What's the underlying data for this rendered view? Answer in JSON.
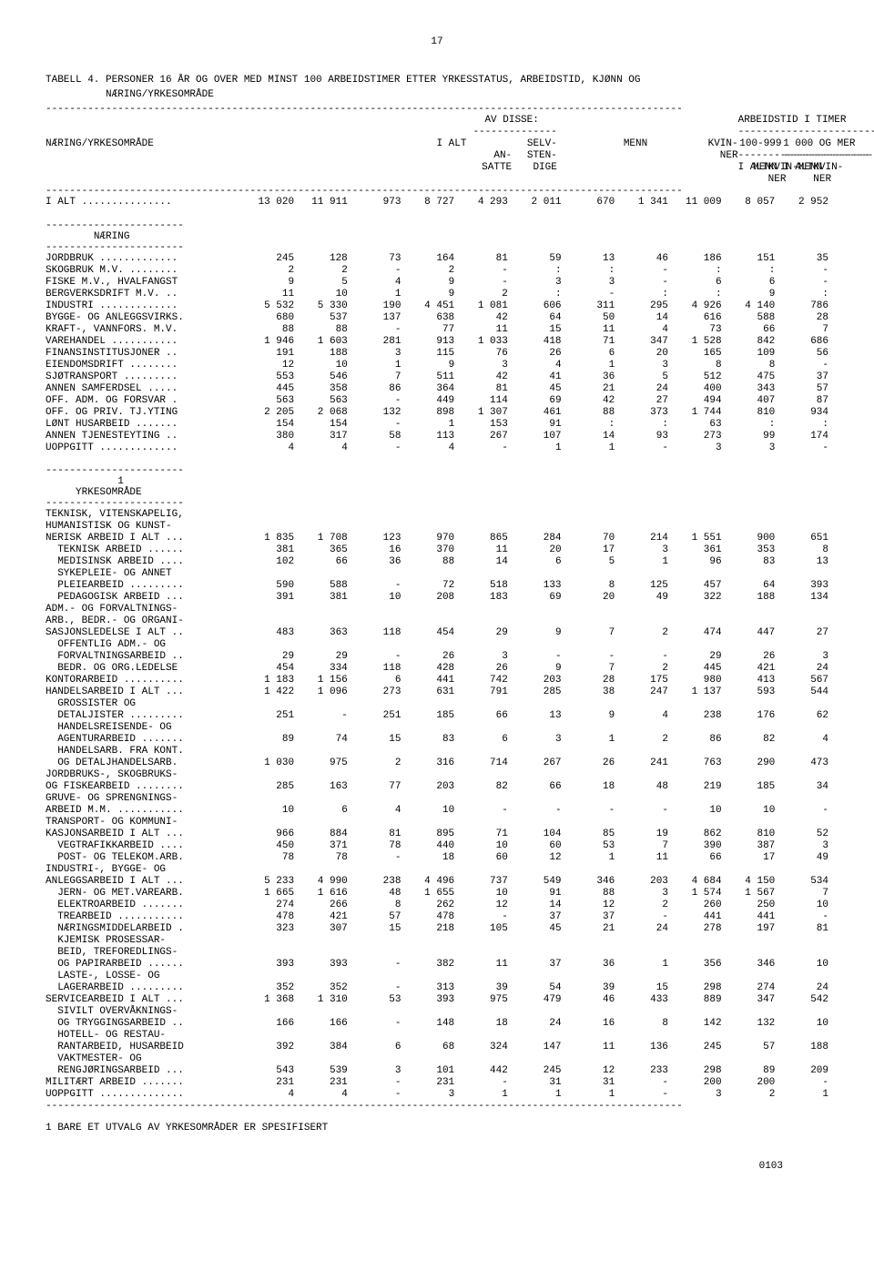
{
  "page_number": "17",
  "title_line1": "TABELL 4. PERSONER 16 ÅR OG OVER MED MINST 100 ARBEIDSTIMER ETTER YRKESSTATUS, ARBEIDSTID, KJØNN OG",
  "title_line2": "          NÆRING/YRKESOMRÅDE",
  "h": {
    "av_disse": "AV DISSE:",
    "arbeidstid": "ARBEIDSTID I TIMER",
    "col_group": "NÆRING/YRKESOMRÅDE",
    "ialt": "I ALT",
    "ansatte": "AN-\nSATTE",
    "selv": "SELV-\nSTEN-\nDIGE",
    "menn": "MENN",
    "kvinner": "KVIN-\nNER",
    "r100_999": "100-999",
    "r1000mer": "1 000 OG MER"
  },
  "section_naering": "NÆRING",
  "section_yrke_no": "1",
  "section_yrke": "YRKESOMRÅDE",
  "rows_naering": [
    [
      "I ALT ...............",
      "13 020",
      "11 911",
      "973",
      "8 727",
      "4 293",
      "2 011",
      "670",
      "1 341",
      "11 009",
      "8 057",
      "2 952"
    ],
    [
      "JORDBRUK .............",
      "245",
      "128",
      "73",
      "164",
      "81",
      "59",
      "13",
      "46",
      "186",
      "151",
      "35"
    ],
    [
      "SKOGBRUK M.V. ........",
      "2",
      "2",
      "-",
      "2",
      "-",
      ":",
      ":",
      "-",
      ":",
      ":",
      "-"
    ],
    [
      "FISKE M.V., HVALFANGST",
      "9",
      "5",
      "4",
      "9",
      "-",
      "3",
      "3",
      "-",
      "6",
      "6",
      "-"
    ],
    [
      "BERGVERKSDRIFT M.V. ..",
      "11",
      "10",
      "1",
      "9",
      "2",
      ":",
      "-",
      ":",
      ":",
      "9",
      ":"
    ],
    [
      "INDUSTRI .............",
      "5 532",
      "5 330",
      "190",
      "4 451",
      "1 081",
      "606",
      "311",
      "295",
      "4 926",
      "4 140",
      "786"
    ],
    [
      "BYGGE- OG ANLEGGSVIRKS.",
      "680",
      "537",
      "137",
      "638",
      "42",
      "64",
      "50",
      "14",
      "616",
      "588",
      "28"
    ],
    [
      "KRAFT-, VANNFORS. M.V.",
      "88",
      "88",
      "-",
      "77",
      "11",
      "15",
      "11",
      "4",
      "73",
      "66",
      "7"
    ],
    [
      "VAREHANDEL ...........",
      "1 946",
      "1 603",
      "281",
      "913",
      "1 033",
      "418",
      "71",
      "347",
      "1 528",
      "842",
      "686"
    ],
    [
      "FINANSINSTITUSJONER ..",
      "191",
      "188",
      "3",
      "115",
      "76",
      "26",
      "6",
      "20",
      "165",
      "109",
      "56"
    ],
    [
      "EIENDOMSDRIFT ........",
      "12",
      "10",
      "1",
      "9",
      "3",
      "4",
      "1",
      "3",
      "8",
      "8",
      "-"
    ],
    [
      "SJØTRANSPORT .........",
      "553",
      "546",
      "7",
      "511",
      "42",
      "41",
      "36",
      "5",
      "512",
      "475",
      "37"
    ],
    [
      "ANNEN SAMFERDSEL .....",
      "445",
      "358",
      "86",
      "364",
      "81",
      "45",
      "21",
      "24",
      "400",
      "343",
      "57"
    ],
    [
      "OFF. ADM. OG FORSVAR .",
      "563",
      "563",
      "-",
      "449",
      "114",
      "69",
      "42",
      "27",
      "494",
      "407",
      "87"
    ],
    [
      "OFF. OG PRIV. TJ.YTING",
      "2 205",
      "2 068",
      "132",
      "898",
      "1 307",
      "461",
      "88",
      "373",
      "1 744",
      "810",
      "934"
    ],
    [
      "LØNT HUSARBEID .......",
      "154",
      "154",
      "-",
      "1",
      "153",
      "91",
      ":",
      ":",
      "63",
      ":",
      ":"
    ],
    [
      "ANNEN TJENESTEYTING ..",
      "380",
      "317",
      "58",
      "113",
      "267",
      "107",
      "14",
      "93",
      "273",
      "99",
      "174"
    ],
    [
      "UOPPGITT .............",
      "4",
      "4",
      "-",
      "4",
      "-",
      "1",
      "1",
      "-",
      "3",
      "3",
      "-"
    ]
  ],
  "rows_yrke": [
    [
      "TEKNISK, VITENSKAPELIG,",
      "",
      "",
      "",
      "",
      "",
      "",
      "",
      "",
      "",
      "",
      ""
    ],
    [
      "HUMANISTISK OG KUNST-",
      "",
      "",
      "",
      "",
      "",
      "",
      "",
      "",
      "",
      "",
      ""
    ],
    [
      "NERISK ARBEID I ALT ...",
      "1 835",
      "1 708",
      "123",
      "970",
      "865",
      "284",
      "70",
      "214",
      "1 551",
      "900",
      "651"
    ],
    [
      "  TEKNISK ARBEID ......",
      "381",
      "365",
      "16",
      "370",
      "11",
      "20",
      "17",
      "3",
      "361",
      "353",
      "8"
    ],
    [
      "  MEDISINSK ARBEID ....",
      "102",
      "66",
      "36",
      "88",
      "14",
      "6",
      "5",
      "1",
      "96",
      "83",
      "13"
    ],
    [
      "  SYKEPLEIE- OG ANNET",
      "",
      "",
      "",
      "",
      "",
      "",
      "",
      "",
      "",
      "",
      ""
    ],
    [
      "  PLEIEARBEID .........",
      "590",
      "588",
      "-",
      "72",
      "518",
      "133",
      "8",
      "125",
      "457",
      "64",
      "393"
    ],
    [
      "  PEDAGOGISK ARBEID ...",
      "391",
      "381",
      "10",
      "208",
      "183",
      "69",
      "20",
      "49",
      "322",
      "188",
      "134"
    ],
    [
      "ADM.- OG FORVALTNINGS-",
      "",
      "",
      "",
      "",
      "",
      "",
      "",
      "",
      "",
      "",
      ""
    ],
    [
      "ARB., BEDR.- OG ORGANI-",
      "",
      "",
      "",
      "",
      "",
      "",
      "",
      "",
      "",
      "",
      ""
    ],
    [
      "SASJONSLEDELSE I ALT ..",
      "483",
      "363",
      "118",
      "454",
      "29",
      "9",
      "7",
      "2",
      "474",
      "447",
      "27"
    ],
    [
      "  OFFENTLIG ADM.- OG",
      "",
      "",
      "",
      "",
      "",
      "",
      "",
      "",
      "",
      "",
      ""
    ],
    [
      "  FORVALTNINGSARBEID ..",
      "29",
      "29",
      "-",
      "26",
      "3",
      "-",
      "-",
      "-",
      "29",
      "26",
      "3"
    ],
    [
      "  BEDR. OG ORG.LEDELSE",
      "454",
      "334",
      "118",
      "428",
      "26",
      "9",
      "7",
      "2",
      "445",
      "421",
      "24"
    ],
    [
      "KONTORARBEID ..........",
      "1 183",
      "1 156",
      "6",
      "441",
      "742",
      "203",
      "28",
      "175",
      "980",
      "413",
      "567"
    ],
    [
      "HANDELSARBEID I ALT ...",
      "1 422",
      "1 096",
      "273",
      "631",
      "791",
      "285",
      "38",
      "247",
      "1 137",
      "593",
      "544"
    ],
    [
      "  GROSSISTER OG",
      "",
      "",
      "",
      "",
      "",
      "",
      "",
      "",
      "",
      "",
      ""
    ],
    [
      "  DETALJISTER .........",
      "251",
      "-",
      "251",
      "185",
      "66",
      "13",
      "9",
      "4",
      "238",
      "176",
      "62"
    ],
    [
      "  HANDELSREISENDE- OG",
      "",
      "",
      "",
      "",
      "",
      "",
      "",
      "",
      "",
      "",
      ""
    ],
    [
      "  AGENTURARBEID .......",
      "89",
      "74",
      "15",
      "83",
      "6",
      "3",
      "1",
      "2",
      "86",
      "82",
      "4"
    ],
    [
      "  HANDELSARB. FRA KONT.",
      "",
      "",
      "",
      "",
      "",
      "",
      "",
      "",
      "",
      "",
      ""
    ],
    [
      "  OG DETALJHANDELSARB.",
      "1 030",
      "975",
      "2",
      "316",
      "714",
      "267",
      "26",
      "241",
      "763",
      "290",
      "473"
    ],
    [
      "JORDBRUKS-, SKOGBRUKS-",
      "",
      "",
      "",
      "",
      "",
      "",
      "",
      "",
      "",
      "",
      ""
    ],
    [
      "OG FISKEARBEID ........",
      "285",
      "163",
      "77",
      "203",
      "82",
      "66",
      "18",
      "48",
      "219",
      "185",
      "34"
    ],
    [
      "GRUVE- OG SPRENGNINGS-",
      "",
      "",
      "",
      "",
      "",
      "",
      "",
      "",
      "",
      "",
      ""
    ],
    [
      "ARBEID M.M. ...........",
      "10",
      "6",
      "4",
      "10",
      "-",
      "-",
      "-",
      "-",
      "10",
      "10",
      "-"
    ],
    [
      "TRANSPORT- OG KOMMUNI-",
      "",
      "",
      "",
      "",
      "",
      "",
      "",
      "",
      "",
      "",
      ""
    ],
    [
      "KASJONSARBEID I ALT ...",
      "966",
      "884",
      "81",
      "895",
      "71",
      "104",
      "85",
      "19",
      "862",
      "810",
      "52"
    ],
    [
      "  VEGTRAFIKKARBEID ....",
      "450",
      "371",
      "78",
      "440",
      "10",
      "60",
      "53",
      "7",
      "390",
      "387",
      "3"
    ],
    [
      "  POST- OG TELEKOM.ARB.",
      "78",
      "78",
      "-",
      "18",
      "60",
      "12",
      "1",
      "11",
      "66",
      "17",
      "49"
    ],
    [
      "INDUSTRI-, BYGGE- OG",
      "",
      "",
      "",
      "",
      "",
      "",
      "",
      "",
      "",
      "",
      ""
    ],
    [
      "ANLEGGSARBEID I ALT ...",
      "5 233",
      "4 990",
      "238",
      "4 496",
      "737",
      "549",
      "346",
      "203",
      "4 684",
      "4 150",
      "534"
    ],
    [
      "  JERN- OG MET.VAREARB.",
      "1 665",
      "1 616",
      "48",
      "1 655",
      "10",
      "91",
      "88",
      "3",
      "1 574",
      "1 567",
      "7"
    ],
    [
      "  ELEKTROARBEID .......",
      "274",
      "266",
      "8",
      "262",
      "12",
      "14",
      "12",
      "2",
      "260",
      "250",
      "10"
    ],
    [
      "  TREARBEID ...........",
      "478",
      "421",
      "57",
      "478",
      "-",
      "37",
      "37",
      "-",
      "441",
      "441",
      "-"
    ],
    [
      "  NÆRINGSMIDDELARBEID .",
      "323",
      "307",
      "15",
      "218",
      "105",
      "45",
      "21",
      "24",
      "278",
      "197",
      "81"
    ],
    [
      "  KJEMISK PROSESSAR-",
      "",
      "",
      "",
      "",
      "",
      "",
      "",
      "",
      "",
      "",
      ""
    ],
    [
      "  BEID, TREFOREDLINGS-",
      "",
      "",
      "",
      "",
      "",
      "",
      "",
      "",
      "",
      "",
      ""
    ],
    [
      "  OG PAPIRARBEID ......",
      "393",
      "393",
      "-",
      "382",
      "11",
      "37",
      "36",
      "1",
      "356",
      "346",
      "10"
    ],
    [
      "  LASTE-, LOSSE- OG",
      "",
      "",
      "",
      "",
      "",
      "",
      "",
      "",
      "",
      "",
      ""
    ],
    [
      "  LAGERARBEID .........",
      "352",
      "352",
      "-",
      "313",
      "39",
      "54",
      "39",
      "15",
      "298",
      "274",
      "24"
    ],
    [
      "SERVICEARBEID I ALT ...",
      "1 368",
      "1 310",
      "53",
      "393",
      "975",
      "479",
      "46",
      "433",
      "889",
      "347",
      "542"
    ],
    [
      "  SIVILT OVERVÅKNINGS-",
      "",
      "",
      "",
      "",
      "",
      "",
      "",
      "",
      "",
      "",
      ""
    ],
    [
      "  OG TRYGGINGSARBEID ..",
      "166",
      "166",
      "-",
      "148",
      "18",
      "24",
      "16",
      "8",
      "142",
      "132",
      "10"
    ],
    [
      "  HOTELL- OG RESTAU-",
      "",
      "",
      "",
      "",
      "",
      "",
      "",
      "",
      "",
      "",
      ""
    ],
    [
      "  RANTARBEID, HUSARBEID",
      "392",
      "384",
      "6",
      "68",
      "324",
      "147",
      "11",
      "136",
      "245",
      "57",
      "188"
    ],
    [
      "  VAKTMESTER- OG",
      "",
      "",
      "",
      "",
      "",
      "",
      "",
      "",
      "",
      "",
      ""
    ],
    [
      "  RENGJØRINGSARBEID ...",
      "543",
      "539",
      "3",
      "101",
      "442",
      "245",
      "12",
      "233",
      "298",
      "89",
      "209"
    ],
    [
      "MILITÆRT ARBEID .......",
      "231",
      "231",
      "-",
      "231",
      "-",
      "31",
      "31",
      "-",
      "200",
      "200",
      "-"
    ],
    [
      "UOPPGITT ..............",
      "4",
      "4",
      "-",
      "3",
      "1",
      "1",
      "1",
      "-",
      "3",
      "2",
      "1"
    ]
  ],
  "footnote": "1 BARE ET UTVALG AV YRKESOMRÅDER ER SPESIFISERT",
  "doc_number": "0103"
}
